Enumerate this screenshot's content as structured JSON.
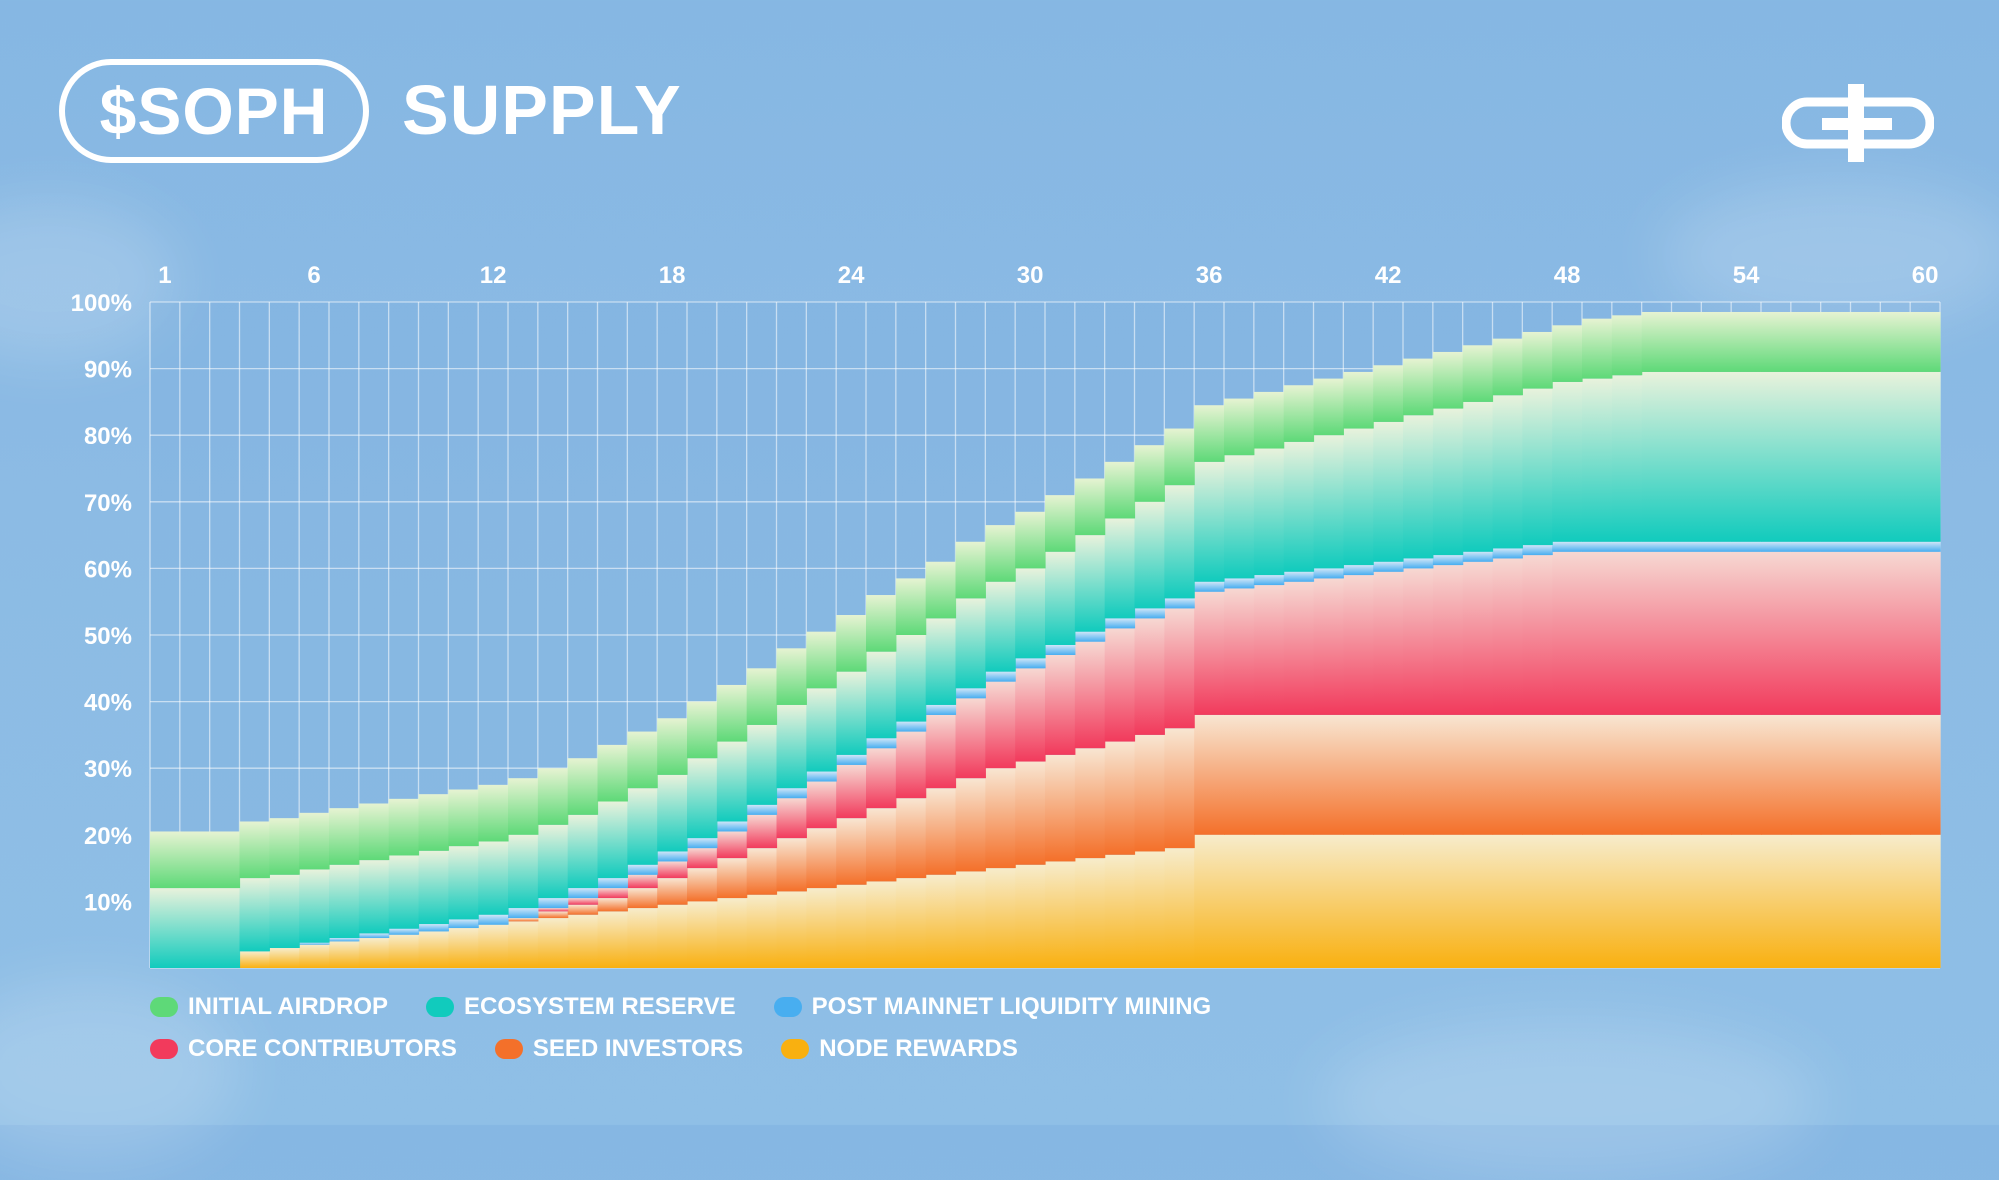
{
  "header": {
    "token": "$SOPH",
    "title": "SUPPLY"
  },
  "logo": {
    "icon": "soph-logo-icon"
  },
  "chart_data": {
    "type": "area",
    "title": "$SOPH SUPPLY",
    "x": [
      1,
      2,
      3,
      4,
      5,
      6,
      7,
      8,
      9,
      10,
      11,
      12,
      13,
      14,
      15,
      16,
      17,
      18,
      19,
      20,
      21,
      22,
      23,
      24,
      25,
      26,
      27,
      28,
      29,
      30,
      31,
      32,
      33,
      34,
      35,
      36,
      37,
      38,
      39,
      40,
      41,
      42,
      43,
      44,
      45,
      46,
      47,
      48,
      49,
      50,
      51,
      52,
      53,
      54,
      55,
      56,
      57,
      58,
      59,
      60
    ],
    "x_ticks": [
      "1",
      "6",
      "12",
      "18",
      "24",
      "30",
      "36",
      "42",
      "48",
      "54",
      "60"
    ],
    "y_ticks": [
      "100%",
      "90%",
      "80%",
      "70%",
      "60%",
      "50%",
      "40%",
      "30%",
      "20%",
      "10%"
    ],
    "ylim": [
      0,
      100
    ],
    "xlim": [
      0.5,
      60.5
    ],
    "grid": true,
    "legend_position": "bottom-left",
    "stacked": true,
    "series": [
      {
        "name": "NODE REWARDS",
        "color": "#f9b010",
        "light": "#f7eccb",
        "values": [
          0,
          0,
          0,
          2.5,
          3,
          3.5,
          4,
          4.5,
          5,
          5.5,
          6,
          6.5,
          7,
          7.5,
          8,
          8.5,
          9,
          9.5,
          10,
          10.5,
          11,
          11.5,
          12,
          12.5,
          13,
          13.5,
          14,
          14.5,
          15,
          15.5,
          16,
          16.5,
          17,
          17.5,
          18,
          20,
          20,
          20,
          20,
          20,
          20,
          20,
          20,
          20,
          20,
          20,
          20,
          20,
          20,
          20,
          20,
          20,
          20,
          20,
          20,
          20,
          20,
          20,
          20,
          20
        ]
      },
      {
        "name": "SEED INVESTORS",
        "color": "#f4702a",
        "light": "#f8e6d2",
        "values": [
          0,
          0,
          0,
          0,
          0,
          0,
          0,
          0,
          0,
          0,
          0,
          0,
          0.5,
          1,
          1.5,
          2,
          3,
          4,
          5,
          6,
          7,
          8,
          9,
          10,
          11,
          12,
          13,
          14,
          15,
          15.5,
          16,
          16.5,
          17,
          17.5,
          18,
          18,
          18,
          18,
          18,
          18,
          18,
          18,
          18,
          18,
          18,
          18,
          18,
          18,
          18,
          18,
          18,
          18,
          18,
          18,
          18,
          18,
          18,
          18,
          18,
          18
        ]
      },
      {
        "name": "CORE CONTRIBUTORS",
        "color": "#f23a5c",
        "light": "#f6d8d2",
        "values": [
          0,
          0,
          0,
          0,
          0,
          0,
          0,
          0,
          0,
          0,
          0,
          0,
          0,
          0.5,
          1,
          1.5,
          2,
          2.5,
          3,
          4,
          5,
          6,
          7,
          8,
          9,
          10,
          11,
          12,
          13,
          14,
          15,
          16,
          17,
          17.5,
          18,
          18.5,
          19,
          19.5,
          20,
          20.5,
          21,
          21.5,
          22,
          22.5,
          23,
          23.5,
          24,
          24.5,
          24.5,
          24.5,
          24.5,
          24.5,
          24.5,
          24.5,
          24.5,
          24.5,
          24.5,
          24.5,
          24.5,
          24.5
        ]
      },
      {
        "name": "POST MAINNET LIQUIDITY MINING",
        "color": "#48aef0",
        "light": "#cfe6f8",
        "values": [
          0,
          0,
          0,
          0,
          0,
          0.3,
          0.5,
          0.7,
          0.9,
          1.1,
          1.3,
          1.5,
          1.5,
          1.5,
          1.5,
          1.5,
          1.5,
          1.5,
          1.5,
          1.5,
          1.5,
          1.5,
          1.5,
          1.5,
          1.5,
          1.5,
          1.5,
          1.5,
          1.5,
          1.5,
          1.5,
          1.5,
          1.5,
          1.5,
          1.5,
          1.5,
          1.5,
          1.5,
          1.5,
          1.5,
          1.5,
          1.5,
          1.5,
          1.5,
          1.5,
          1.5,
          1.5,
          1.5,
          1.5,
          1.5,
          1.5,
          1.5,
          1.5,
          1.5,
          1.5,
          1.5,
          1.5,
          1.5,
          1.5,
          1.5
        ]
      },
      {
        "name": "ECOSYSTEM RESERVE",
        "color": "#11cbbd",
        "light": "#e8f2dc",
        "values": [
          12,
          12,
          12,
          11,
          11,
          11,
          11,
          11,
          11,
          11,
          11,
          11,
          11,
          11,
          11,
          11.5,
          11.5,
          11.5,
          12,
          12,
          12,
          12.5,
          12.5,
          12.5,
          13,
          13,
          13,
          13.5,
          13.5,
          13.5,
          14,
          14.5,
          15,
          16,
          17,
          18,
          18.5,
          19,
          19.5,
          20,
          20.5,
          21,
          21.5,
          22,
          22.5,
          23,
          23.5,
          24,
          24.5,
          25,
          25.5,
          25.5,
          25.5,
          25.5,
          25.5,
          25.5,
          25.5,
          25.5,
          25.5,
          25.5
        ]
      },
      {
        "name": "INITIAL AIRDROP",
        "color": "#5ed978",
        "light": "#e6f3d2",
        "values": [
          8.5,
          8.5,
          8.5,
          8.5,
          8.5,
          8.5,
          8.5,
          8.5,
          8.5,
          8.5,
          8.5,
          8.5,
          8.5,
          8.5,
          8.5,
          8.5,
          8.5,
          8.5,
          8.5,
          8.5,
          8.5,
          8.5,
          8.5,
          8.5,
          8.5,
          8.5,
          8.5,
          8.5,
          8.5,
          8.5,
          8.5,
          8.5,
          8.5,
          8.5,
          8.5,
          8.5,
          8.5,
          8.5,
          8.5,
          8.5,
          8.5,
          8.5,
          8.5,
          8.5,
          8.5,
          8.5,
          8.5,
          8.5,
          9,
          9,
          9,
          9,
          9,
          9,
          9,
          9,
          9,
          9,
          9,
          9
        ]
      }
    ]
  },
  "legend": {
    "row1": [
      {
        "label": "INITIAL AIRDROP",
        "color": "#5ed978"
      },
      {
        "label": "ECOSYSTEM RESERVE",
        "color": "#11cbbd"
      },
      {
        "label": "POST MAINNET LIQUIDITY MINING",
        "color": "#48aef0"
      }
    ],
    "row2": [
      {
        "label": "CORE CONTRIBUTORS",
        "color": "#f23a5c"
      },
      {
        "label": "SEED INVESTORS",
        "color": "#f4702a"
      },
      {
        "label": "NODE REWARDS",
        "color": "#f9b010"
      }
    ]
  }
}
